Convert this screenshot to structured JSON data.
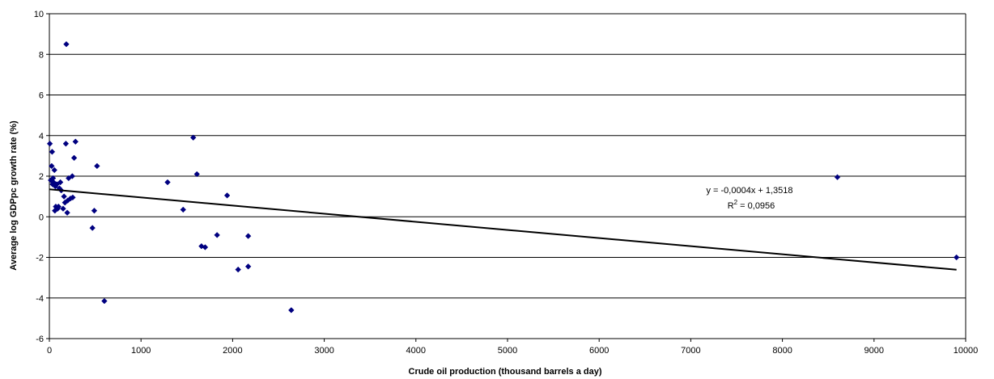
{
  "chart_data": {
    "type": "scatter",
    "title": "",
    "xlabel": "Crude oil production (thousand barrels a day)",
    "ylabel": "Average log GDPpc growth rate (%)",
    "xlim": [
      0,
      10000
    ],
    "ylim": [
      -6,
      10
    ],
    "x_ticks": [
      0,
      1000,
      2000,
      3000,
      4000,
      5000,
      6000,
      7000,
      8000,
      9000,
      10000
    ],
    "y_ticks": [
      -6,
      -4,
      -2,
      0,
      2,
      4,
      6,
      8,
      10
    ],
    "grid": "horizontal",
    "legend": "none",
    "marker_color": "#000080",
    "points": [
      {
        "x": 5,
        "y": 3.6
      },
      {
        "x": 15,
        "y": 1.8
      },
      {
        "x": 25,
        "y": 2.5
      },
      {
        "x": 30,
        "y": 3.2
      },
      {
        "x": 35,
        "y": 1.6
      },
      {
        "x": 40,
        "y": 1.9
      },
      {
        "x": 45,
        "y": 1.7
      },
      {
        "x": 55,
        "y": 2.3
      },
      {
        "x": 60,
        "y": 0.3
      },
      {
        "x": 65,
        "y": 1.5
      },
      {
        "x": 70,
        "y": 0.5
      },
      {
        "x": 80,
        "y": 1.6
      },
      {
        "x": 90,
        "y": 0.4
      },
      {
        "x": 100,
        "y": 0.5
      },
      {
        "x": 110,
        "y": 1.4
      },
      {
        "x": 120,
        "y": 1.7
      },
      {
        "x": 130,
        "y": 1.3
      },
      {
        "x": 150,
        "y": 0.4
      },
      {
        "x": 160,
        "y": 1.0
      },
      {
        "x": 170,
        "y": 0.7
      },
      {
        "x": 180,
        "y": 3.6
      },
      {
        "x": 185,
        "y": 8.5
      },
      {
        "x": 195,
        "y": 0.2
      },
      {
        "x": 200,
        "y": 0.8
      },
      {
        "x": 210,
        "y": 1.9
      },
      {
        "x": 230,
        "y": 0.9
      },
      {
        "x": 250,
        "y": 2.0
      },
      {
        "x": 255,
        "y": 0.95
      },
      {
        "x": 270,
        "y": 2.9
      },
      {
        "x": 285,
        "y": 3.7
      },
      {
        "x": 470,
        "y": -0.55
      },
      {
        "x": 490,
        "y": 0.3
      },
      {
        "x": 520,
        "y": 2.5
      },
      {
        "x": 600,
        "y": -4.15
      },
      {
        "x": 1290,
        "y": 1.7
      },
      {
        "x": 1460,
        "y": 0.35
      },
      {
        "x": 1570,
        "y": 3.9
      },
      {
        "x": 1610,
        "y": 2.1
      },
      {
        "x": 1660,
        "y": -1.45
      },
      {
        "x": 1700,
        "y": -1.5
      },
      {
        "x": 1830,
        "y": -0.9
      },
      {
        "x": 1940,
        "y": 1.05
      },
      {
        "x": 2060,
        "y": -2.6
      },
      {
        "x": 2170,
        "y": -2.45
      },
      {
        "x": 2170,
        "y": -0.95
      },
      {
        "x": 2640,
        "y": -4.6
      },
      {
        "x": 8600,
        "y": 1.95
      },
      {
        "x": 9900,
        "y": -2.0
      }
    ],
    "trendline": {
      "type": "linear",
      "slope": -0.0004,
      "intercept": 1.3518,
      "x_range": [
        0,
        9900
      ],
      "equation": "y = -0,0004x + 1,3518",
      "r2_prefix": "R",
      "r2_sup": "2",
      "r2_value": " = 0,0956"
    }
  }
}
